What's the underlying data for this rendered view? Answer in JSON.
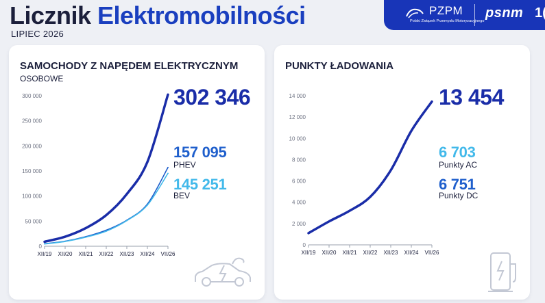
{
  "header": {
    "title_part1": "Licznik",
    "title_part2": "Elektromobilności",
    "date": "LIPIEC 2026",
    "logo_pzpm": "PZPM",
    "logo_pzpm_sub": "Polski Związek Przemysłu Motoryzacyjnego",
    "logo_psnm": "psnm",
    "logo_psnm_extra": "1("
  },
  "left_card": {
    "title": "SAMOCHODY Z NAPĘDEM ELEKTRYCZNYM",
    "subtitle": "OSOBOWE",
    "total_value": "302 346",
    "phev_value": "157 095",
    "phev_label": "PHEV",
    "bev_value": "145 251",
    "bev_label": "BEV",
    "icon": "car-charging-icon"
  },
  "right_card": {
    "title": "PUNKTY ŁADOWANIA",
    "total_value": "13 454",
    "ac_value": "6 703",
    "ac_label": "Punkty AC",
    "dc_value": "6 751",
    "dc_label": "Punkty DC",
    "icon": "charging-station-icon"
  },
  "chart_data": [
    {
      "type": "line",
      "x": [
        "XII/19",
        "XII/20",
        "XII/21",
        "XII/22",
        "XII/23",
        "XII/24",
        "VII/26"
      ],
      "ylim": [
        0,
        300000
      ],
      "yticks": [
        "0",
        "50 000",
        "100 000",
        "150 000",
        "200 000",
        "250 000",
        "300 000"
      ],
      "series": [
        {
          "name": "",
          "color": "#1a2da8",
          "values": [
            9000,
            19000,
            36000,
            62000,
            104000,
            168000,
            302346
          ]
        },
        {
          "name": "PHEV",
          "color": "#1f5fcc",
          "values": [
            5000,
            10000,
            19000,
            32000,
            52000,
            84000,
            157095
          ]
        },
        {
          "name": "BEV",
          "color": "#42b9ea",
          "values": [
            4500,
            9500,
            18000,
            30000,
            51000,
            82000,
            145251
          ]
        }
      ]
    },
    {
      "type": "line",
      "x": [
        "XII/19",
        "XII/20",
        "XII/21",
        "XII/22",
        "XII/23",
        "XII/24",
        "VII/26"
      ],
      "ylim": [
        0,
        14000
      ],
      "yticks": [
        "0",
        "2 000",
        "4 000",
        "6 000",
        "8 000",
        "10 000",
        "12 000",
        "14 000"
      ],
      "series": [
        {
          "name": "",
          "color": "#1a2da8",
          "values": [
            1100,
            2200,
            3200,
            4500,
            7000,
            10700,
            13454
          ]
        }
      ]
    }
  ]
}
